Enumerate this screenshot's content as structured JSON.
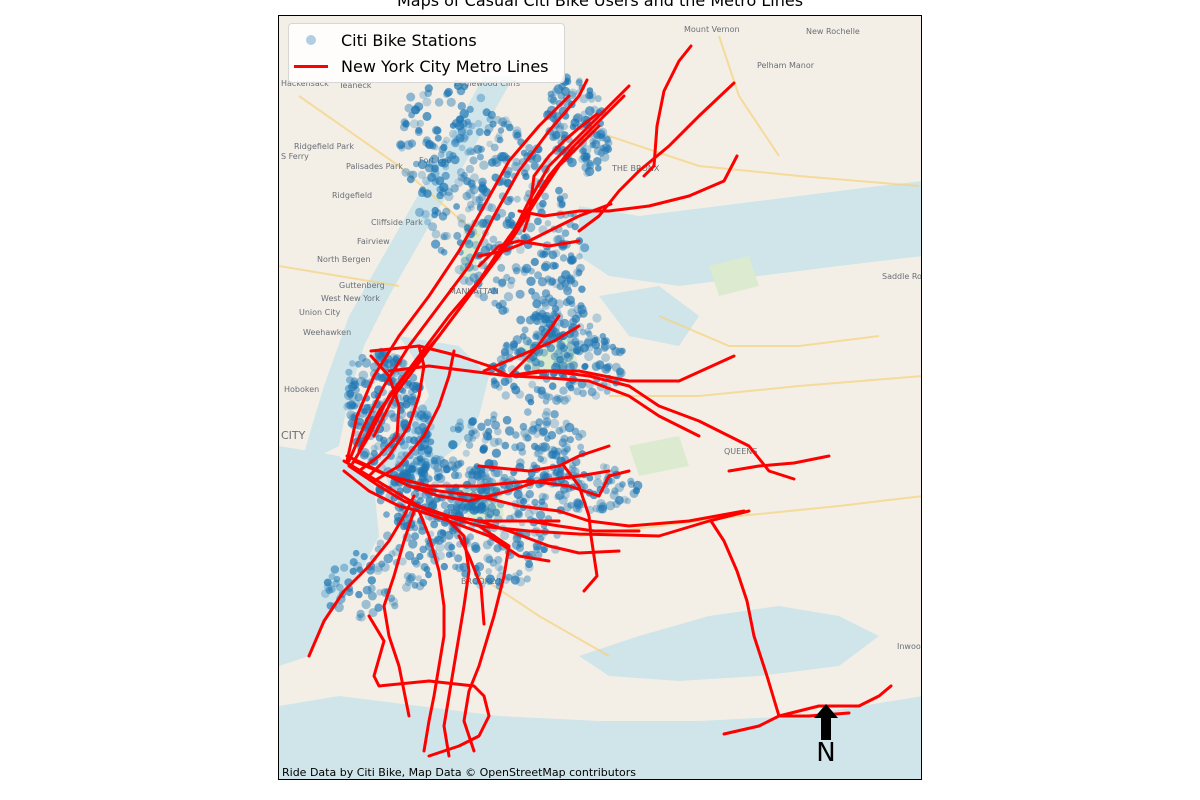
{
  "title": "Maps of Casual Citi Bike Users and the Metro Lines",
  "legend": {
    "stations_label": "Citi Bike Stations",
    "metro_label": "New York City Metro Lines"
  },
  "attribution": "Ride Data by Citi Bike, Map Data © OpenStreetMap contributors",
  "north_label": "N",
  "colors": {
    "stations": "#1f77b4",
    "metro": "#ff0000",
    "water": "#cfe5ea",
    "land": "#f3efe6"
  },
  "map_labels": {
    "mount_vernon": "Mount Vernon",
    "new_rochelle": "New Rochelle",
    "pelham_manor": "Pelham Manor",
    "hackensack": "Hackensack",
    "teaneck": "Teaneck",
    "englewood_cliffs": "Englewood Cliffs",
    "ridgefield_park": "Ridgefield Park",
    "fort_lee": "Fort Lee",
    "palisades_park": "Palisades Park",
    "south_ferry": "S Ferry",
    "ridgefield": "Ridgefield",
    "the_bronx": "THE BRONX",
    "cliffside_park": "Cliffside Park",
    "fairview": "Fairview",
    "north_bergen": "North Bergen",
    "guttenberg": "Guttenberg",
    "west_new_york": "West New York",
    "union_city": "Union City",
    "weehawken": "Weehawken",
    "manhattan": "MANHATTAN",
    "hoboken": "Hoboken",
    "city": "CITY",
    "queens": "QUEENS",
    "brooklyn": "BROOKLYN",
    "saddle_rock": "Saddle Rock",
    "inwood": "Inwood"
  }
}
